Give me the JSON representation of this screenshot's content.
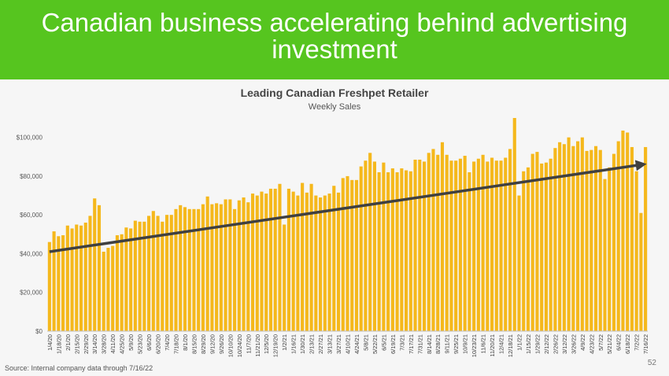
{
  "slide": {
    "title": "Canadian business accelerating behind advertising investment",
    "source": "Source:  Internal company data through 7/16/22",
    "page_number": "52",
    "colors": {
      "banner": "#56c51f",
      "bars": "#f5b81c",
      "trend_arrow": "#404040"
    }
  },
  "chart_data": {
    "type": "bar",
    "title": "Leading Canadian Freshpet Retailer",
    "subtitle": "Weekly Sales",
    "xlabel": "",
    "ylabel": "",
    "ylim": [
      0,
      110000
    ],
    "yticks": [
      0,
      20000,
      40000,
      60000,
      80000,
      100000
    ],
    "ytick_labels": [
      "$0",
      "$20,000",
      "$40,000",
      "$60,000",
      "$80,000",
      "$100,000"
    ],
    "grid": false,
    "legend": "none",
    "start_week": "1/4/20",
    "x_tick_labels": [
      "1/4/20",
      "1/18/20",
      "2/1/20",
      "2/15/20",
      "2/29/20",
      "3/14/20",
      "3/28/20",
      "4/11/20",
      "4/25/20",
      "5/9/20",
      "5/23/20",
      "6/6/20",
      "6/20/20",
      "7/4/20",
      "7/18/20",
      "8/1/20",
      "8/15/20",
      "8/29/20",
      "9/12/20",
      "9/26/20",
      "10/10/20",
      "10/24/20",
      "11/7/20",
      "11/21/20",
      "12/5/20",
      "12/19/20",
      "1/2/21",
      "1/16/21",
      "1/30/21",
      "2/13/21",
      "2/27/21",
      "3/13/21",
      "3/27/21",
      "4/10/21",
      "4/24/21",
      "5/8/21",
      "5/22/21",
      "6/5/21",
      "6/19/21",
      "7/3/21",
      "7/17/21",
      "7/31/21",
      "8/14/21",
      "8/28/21",
      "9/11/21",
      "9/25/21",
      "10/9/21",
      "10/23/21",
      "11/6/21",
      "11/20/21",
      "12/4/21",
      "12/18/21",
      "1/1/22",
      "1/15/22",
      "1/29/22",
      "2/12/22",
      "2/26/22",
      "3/12/22",
      "3/26/22",
      "4/9/22",
      "4/23/22",
      "5/7/22",
      "5/21/22",
      "6/4/22",
      "6/18/22",
      "7/2/22",
      "7/16/22"
    ],
    "values": [
      46000,
      51500,
      49000,
      49500,
      54500,
      53000,
      55000,
      54500,
      56000,
      59500,
      68500,
      65000,
      41000,
      43000,
      44000,
      49500,
      50000,
      53500,
      53000,
      57000,
      56500,
      56500,
      59500,
      62000,
      59500,
      56500,
      60000,
      60000,
      63000,
      65000,
      64000,
      63000,
      63000,
      63000,
      65500,
      69500,
      65500,
      66000,
      65500,
      68000,
      68000,
      63000,
      67500,
      69000,
      66500,
      71000,
      70000,
      72000,
      71000,
      73500,
      73500,
      76000,
      55000,
      73500,
      72000,
      70000,
      76500,
      71500,
      76000,
      70000,
      69000,
      70000,
      71000,
      75000,
      71500,
      79000,
      80000,
      78000,
      78000,
      85000,
      88000,
      92000,
      87500,
      82000,
      87000,
      82000,
      84000,
      82000,
      84000,
      83000,
      82500,
      88500,
      88500,
      87500,
      92000,
      94000,
      91000,
      97500,
      91000,
      88000,
      88000,
      89000,
      90500,
      82000,
      87500,
      89000,
      91000,
      87500,
      89500,
      88000,
      88000,
      89500,
      94000,
      110000,
      70000,
      82500,
      84500,
      91500,
      92500,
      86500,
      87000,
      89000,
      94500,
      97500,
      96500,
      100000,
      95500,
      98000,
      100000,
      93000,
      93500,
      95500,
      93500,
      78500,
      84500,
      91500,
      98000,
      103500,
      102500,
      95000,
      82500,
      61000,
      95000
    ],
    "trend_line": {
      "start_value": 41000,
      "end_value": 86000
    }
  }
}
